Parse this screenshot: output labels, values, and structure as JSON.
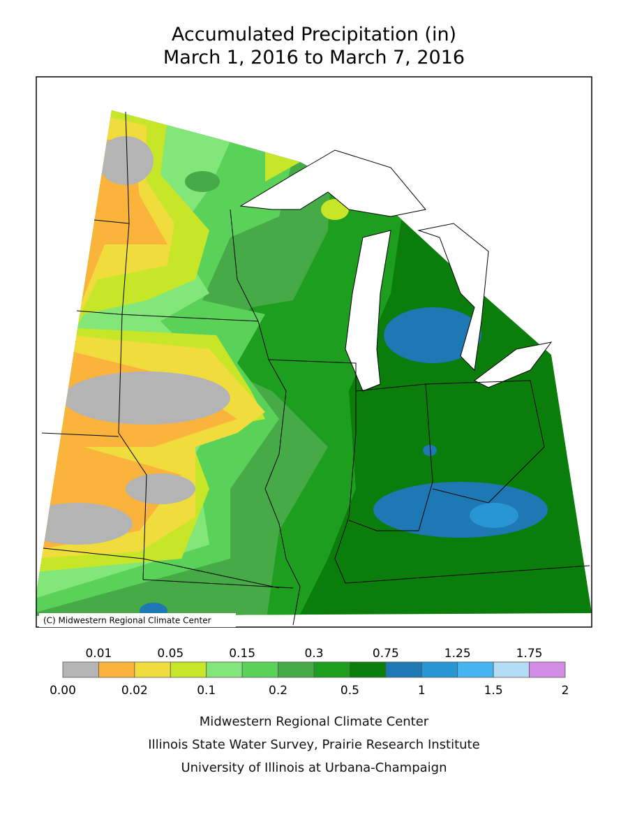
{
  "title": [
    "Accumulated Precipitation (in)",
    "March 1, 2016 to March 7, 2016"
  ],
  "map": {
    "credit": "(C) Midwestern Regional Climate Center"
  },
  "legend": {
    "breaks": [
      "0.00",
      "0.01",
      "0.02",
      "0.05",
      "0.1",
      "0.15",
      "0.2",
      "0.3",
      "0.5",
      "0.75",
      "1",
      "1.25",
      "1.5",
      "1.75",
      "2"
    ],
    "colors": [
      "#b4b4b4",
      "#fab43c",
      "#f0dc3c",
      "#c8e628",
      "#82e678",
      "#5ad25a",
      "#46aa46",
      "#1e9e1e",
      "#0a7d0a",
      "#1e78b4",
      "#2896d2",
      "#46b4f0",
      "#b4dcf5",
      "#d28ce6"
    ]
  },
  "footer": [
    "Midwestern Regional Climate Center",
    "Illinois State Water Survey, Prairie Research Institute",
    "University of Illinois at Urbana-Champaign"
  ]
}
